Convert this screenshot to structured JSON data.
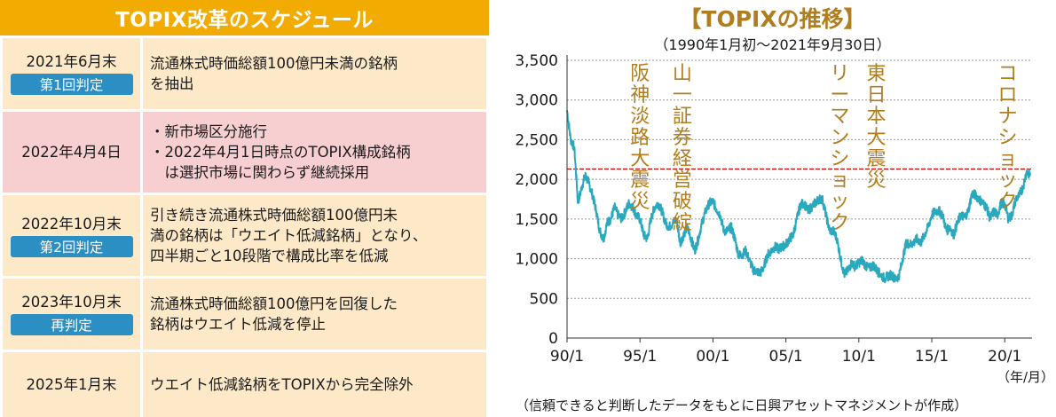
{
  "schedule": {
    "title": "TOPIX改革のスケジュール",
    "rows": [
      {
        "date": "2021年6月末",
        "badge": "第1回判定",
        "lines": [
          "流通株式時価総額100億円未満の銘柄",
          "を抽出"
        ]
      },
      {
        "date": "2022年4月4日",
        "badge": "",
        "lines": [
          "・新市場区分施行",
          "・2022年4月1日時点のTOPIX構成銘柄",
          "　は選択市場に関わらず継続採用"
        ]
      },
      {
        "date": "2022年10月末",
        "badge": "第2回判定",
        "lines": [
          "引き続き流通株式時価総額100億円未",
          "満の銘柄は「ウエイト低減銘柄」となり、",
          "四半期ごと10段階で構成比率を低減"
        ]
      },
      {
        "date": "2023年10月末",
        "badge": "再判定",
        "lines": [
          "流通株式時価総額100億円を回復した",
          "銘柄はウエイト低減を停止"
        ]
      },
      {
        "date": "2025年1月末",
        "badge": "",
        "lines": [
          "ウエイト低減銘柄をTOPIXから完全除外"
        ]
      }
    ]
  },
  "chart_data": {
    "type": "line",
    "title": "【TOPIXの推移】",
    "subtitle": "（1990年1月初～2021年9月30日）",
    "xlabel": "",
    "ylabel": "",
    "unit": "（年/月）",
    "source": "（信頼できると判断したデータをもとに日興アセットマネジメントが作成）",
    "x_ticks": [
      "90/1",
      "95/1",
      "00/1",
      "05/1",
      "10/1",
      "15/1",
      "20/1"
    ],
    "y_ticks": [
      "0",
      "500",
      "1,000",
      "1,500",
      "2,000",
      "2,500",
      "3,000",
      "3,500"
    ],
    "ylim": [
      0,
      3500
    ],
    "xlim": [
      1990.0,
      2021.75
    ],
    "grid": "horizontal-dotted",
    "reference_line": {
      "value": 2130,
      "color": "#cc0000"
    },
    "series": [
      {
        "name": "",
        "color": "#2aa9be",
        "x": [
          1990.0,
          1990.25,
          1990.5,
          1990.75,
          1991.0,
          1991.25,
          1991.5,
          1991.75,
          1992.0,
          1992.25,
          1992.5,
          1992.75,
          1993.0,
          1993.25,
          1993.5,
          1993.75,
          1994.0,
          1994.25,
          1994.5,
          1994.75,
          1995.0,
          1995.25,
          1995.5,
          1995.75,
          1996.0,
          1996.25,
          1996.5,
          1996.75,
          1997.0,
          1997.25,
          1997.5,
          1997.75,
          1998.0,
          1998.25,
          1998.5,
          1998.75,
          1999.0,
          1999.25,
          1999.5,
          1999.75,
          2000.0,
          2000.25,
          2000.5,
          2000.75,
          2001.0,
          2001.25,
          2001.5,
          2001.75,
          2002.0,
          2002.25,
          2002.5,
          2002.75,
          2003.0,
          2003.25,
          2003.5,
          2003.75,
          2004.0,
          2004.25,
          2004.5,
          2004.75,
          2005.0,
          2005.25,
          2005.5,
          2005.75,
          2006.0,
          2006.25,
          2006.5,
          2006.75,
          2007.0,
          2007.25,
          2007.5,
          2007.75,
          2008.0,
          2008.25,
          2008.5,
          2008.75,
          2009.0,
          2009.25,
          2009.5,
          2009.75,
          2010.0,
          2010.25,
          2010.5,
          2010.75,
          2011.0,
          2011.25,
          2011.5,
          2011.75,
          2012.0,
          2012.25,
          2012.5,
          2012.75,
          2013.0,
          2013.25,
          2013.5,
          2013.75,
          2014.0,
          2014.25,
          2014.5,
          2014.75,
          2015.0,
          2015.25,
          2015.5,
          2015.75,
          2016.0,
          2016.25,
          2016.5,
          2016.75,
          2017.0,
          2017.25,
          2017.5,
          2017.75,
          2018.0,
          2018.25,
          2018.5,
          2018.75,
          2019.0,
          2019.25,
          2019.5,
          2019.75,
          2020.0,
          2020.25,
          2020.5,
          2020.75,
          2021.0,
          2021.25,
          2021.5,
          2021.75
        ],
        "values": [
          2870,
          2500,
          2400,
          1700,
          1900,
          2050,
          1950,
          1800,
          1600,
          1350,
          1250,
          1450,
          1500,
          1650,
          1550,
          1500,
          1600,
          1700,
          1650,
          1550,
          1500,
          1300,
          1250,
          1500,
          1650,
          1700,
          1600,
          1450,
          1400,
          1450,
          1500,
          1200,
          1300,
          1400,
          1250,
          1100,
          1250,
          1450,
          1600,
          1700,
          1720,
          1620,
          1550,
          1350,
          1350,
          1400,
          1250,
          1050,
          1050,
          1100,
          980,
          860,
          840,
          820,
          900,
          1050,
          1100,
          1150,
          1120,
          1150,
          1180,
          1250,
          1300,
          1500,
          1680,
          1700,
          1600,
          1650,
          1700,
          1750,
          1750,
          1550,
          1350,
          1350,
          1250,
          1000,
          800,
          850,
          950,
          900,
          950,
          980,
          900,
          880,
          920,
          850,
          800,
          750,
          780,
          800,
          740,
          780,
          1000,
          1200,
          1180,
          1200,
          1250,
          1200,
          1300,
          1400,
          1550,
          1600,
          1600,
          1550,
          1350,
          1400,
          1300,
          1450,
          1550,
          1520,
          1600,
          1820,
          1800,
          1750,
          1700,
          1650,
          1500,
          1600,
          1550,
          1700,
          1700,
          1500,
          1550,
          1750,
          1800,
          1900,
          2100,
          2050
        ]
      }
    ],
    "annotations": [
      {
        "text": "阪神淡路大震災",
        "x": 1995.0
      },
      {
        "text": "山一証券経営破綻",
        "x": 1997.9
      },
      {
        "text": "リーマンショック",
        "x": 2008.7
      },
      {
        "text": "東日本大震災",
        "x": 2011.2
      },
      {
        "text": "コロナショック",
        "x": 2020.2
      }
    ]
  }
}
